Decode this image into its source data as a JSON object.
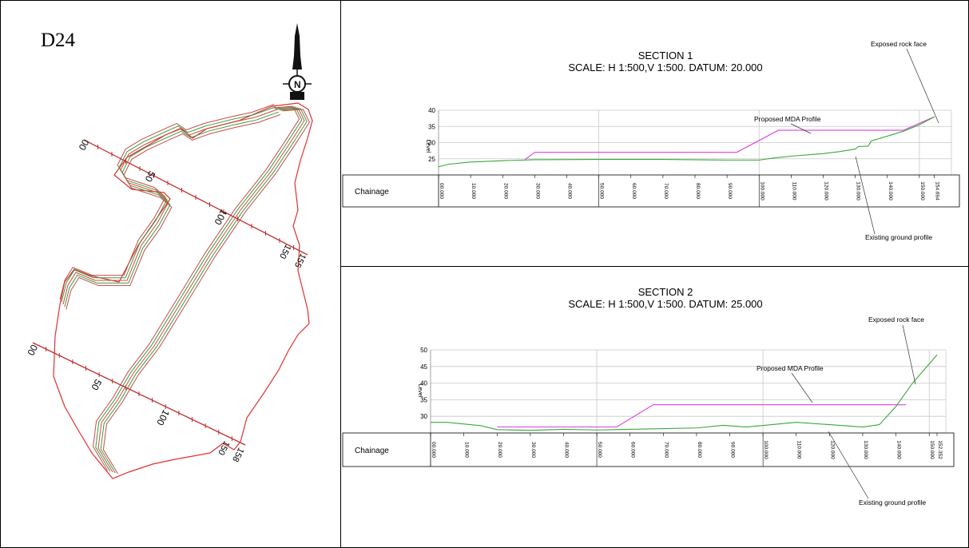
{
  "plan": {
    "label": "D24",
    "chainage_ticks_line1": [
      "00",
      "50",
      "100",
      "150",
      "155"
    ],
    "chainage_ticks_line2": [
      "00",
      "50",
      "100",
      "150",
      "158"
    ]
  },
  "colors": {
    "boundary": "#e03030",
    "contour_red": "#c84a4a",
    "contour_green": "#3a9a3a",
    "proposed_profile": "#e03ee0",
    "ground_profile": "#3aa83a",
    "grid": "#c8c8c8"
  },
  "sections": [
    {
      "title": "SECTION 1",
      "scale": "SCALE: H 1:500,V 1:500. DATUM: 20.000",
      "ylabel": "Level",
      "band_label": "Chainage",
      "annotations": {
        "rock": "Exposed rock face",
        "proposed": "Proposed MDA Profile",
        "ground": "Existing ground profile"
      }
    },
    {
      "title": "SECTION 2",
      "scale": "SCALE: H 1:500,V 1:500. DATUM: 25.000",
      "ylabel": "Level",
      "band_label": "Chainage",
      "annotations": {
        "rock": "Exposed rock face",
        "proposed": "Proposed MDA Profile",
        "ground": "Existing ground profile"
      }
    }
  ],
  "chart_data": [
    {
      "type": "line",
      "title": "SECTION 1",
      "subtitle": "SCALE: H 1:500,V 1:500. DATUM: 20.000",
      "xlabel": "Chainage",
      "ylabel": "Level",
      "xlim": [
        0,
        160
      ],
      "ylim": [
        20,
        40
      ],
      "y_ticks": [
        "25",
        "30",
        "35",
        "40"
      ],
      "x_tick_labels": [
        "00.000",
        "10.000",
        "20.000",
        "30.000",
        "40.000",
        "50.000",
        "60.000",
        "70.000",
        "80.000",
        "90.000",
        "100.000",
        "110.000",
        "120.000",
        "130.000",
        "140.000",
        "150.000",
        "154.694"
      ],
      "x_tick_values": [
        0,
        10,
        20,
        30,
        40,
        50,
        60,
        70,
        80,
        90,
        100,
        110,
        120,
        130,
        140,
        150,
        154.694
      ],
      "series": [
        {
          "name": "Proposed MDA Profile",
          "x": [
            27,
            30,
            93,
            106,
            145,
            154.694
          ],
          "y": [
            24.8,
            27.0,
            27.0,
            33.8,
            33.8,
            38.0
          ]
        },
        {
          "name": "Existing ground profile",
          "x": [
            0,
            3,
            10,
            20,
            30,
            50,
            70,
            90,
            100,
            105,
            110,
            120,
            125,
            130,
            131,
            134,
            135,
            145,
            150,
            154.694
          ],
          "y": [
            22.5,
            23.3,
            24.0,
            24.4,
            24.7,
            24.8,
            24.8,
            24.6,
            24.6,
            25.3,
            25.8,
            26.6,
            27.2,
            28.0,
            28.8,
            28.9,
            30.5,
            33.5,
            35.5,
            38.0
          ]
        }
      ]
    },
    {
      "type": "line",
      "title": "SECTION 2",
      "subtitle": "SCALE: H 1:500,V 1:500. DATUM: 25.000",
      "xlabel": "Chainage",
      "ylabel": "Level",
      "xlim": [
        0,
        155
      ],
      "ylim": [
        25,
        50
      ],
      "y_ticks": [
        "30",
        "35",
        "40",
        "45",
        "50"
      ],
      "x_tick_labels": [
        "00.000",
        "10.000",
        "20.000",
        "30.000",
        "40.000",
        "50.000",
        "60.000",
        "70.000",
        "80.000",
        "90.000",
        "100.000",
        "110.000",
        "120.000",
        "130.000",
        "140.000",
        "150.000",
        "152.352"
      ],
      "x_tick_values": [
        0,
        10,
        20,
        30,
        40,
        50,
        60,
        70,
        80,
        90,
        100,
        110,
        120,
        130,
        140,
        150,
        152.352
      ],
      "series": [
        {
          "name": "Proposed MDA Profile",
          "x": [
            20,
            56,
            67,
            143
          ],
          "y": [
            26.8,
            26.8,
            33.5,
            33.5
          ]
        },
        {
          "name": "Existing ground profile",
          "x": [
            0,
            5,
            15,
            20,
            30,
            40,
            50,
            60,
            70,
            80,
            88,
            95,
            110,
            120,
            130,
            135,
            140,
            145,
            152.352
          ],
          "y": [
            28.2,
            28.2,
            27.2,
            26.0,
            25.8,
            26.1,
            25.9,
            26.1,
            26.3,
            26.5,
            27.3,
            26.8,
            28.2,
            27.5,
            26.8,
            27.5,
            33.0,
            40.0,
            48.5
          ]
        }
      ]
    }
  ]
}
